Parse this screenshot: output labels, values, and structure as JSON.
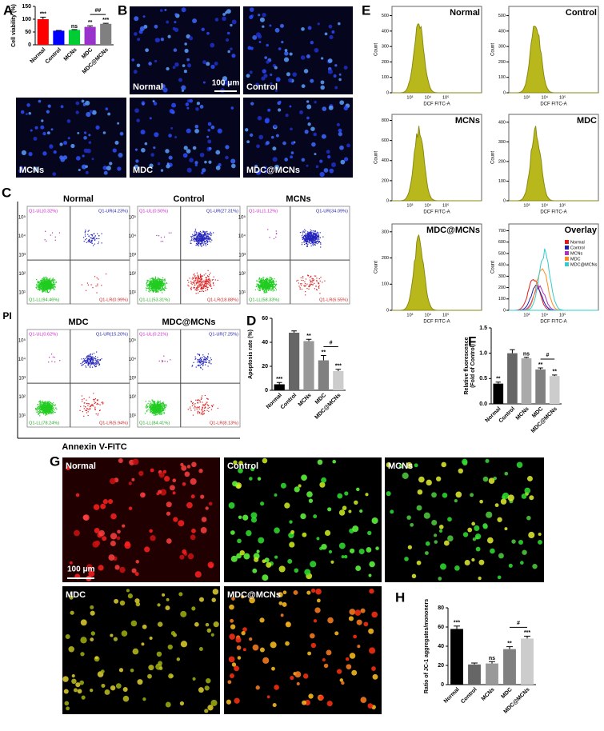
{
  "panel_labels": [
    "A",
    "B",
    "C",
    "D",
    "E",
    "F",
    "G",
    "H"
  ],
  "chart_data": [
    {
      "type": "bar",
      "ylabel": "Cell viability (%)",
      "categories": [
        "Normal",
        "Control",
        "MCNs",
        "MDC",
        "MDC@MCNs"
      ],
      "values": [
        100,
        55,
        58,
        70,
        82
      ],
      "errors": [
        8,
        1,
        1.5,
        4,
        2
      ],
      "colors": [
        "#ff0000",
        "#0000ff",
        "#00cc33",
        "#9933cc",
        "#808080"
      ],
      "ylim": [
        0,
        150
      ],
      "yticks": [
        0,
        50,
        100,
        150
      ],
      "annotations": [
        "***",
        null,
        "ns",
        "**",
        "***"
      ],
      "bracket_label": "##"
    },
    {
      "type": "bar",
      "ylabel": "Apoptosis rate (%)",
      "categories": [
        "Normal",
        "Control",
        "MCNs",
        "MDC",
        "MDC@MCNs"
      ],
      "values": [
        5,
        48,
        41,
        25,
        16
      ],
      "errors": [
        1.5,
        1.5,
        1.5,
        4,
        1.5
      ],
      "colors": [
        "#000000",
        "#666666",
        "#999999",
        "#808080",
        "#cccccc"
      ],
      "ylim": [
        0,
        60
      ],
      "yticks": [
        0,
        20,
        40,
        60
      ],
      "annotations": [
        "***",
        null,
        "**",
        "**",
        "***"
      ],
      "bracket_label": "#"
    },
    {
      "type": "bar",
      "ylabel": [
        "Relative fluorescence",
        "(Fold of Control)"
      ],
      "categories": [
        "Normal",
        "Control",
        "MCNs",
        "MDC",
        "MDC@MCNs"
      ],
      "values": [
        0.4,
        1.0,
        0.9,
        0.68,
        0.55
      ],
      "errors": [
        0.03,
        0.07,
        0.02,
        0.03,
        0.02
      ],
      "colors": [
        "#000000",
        "#666666",
        "#aaaaaa",
        "#808080",
        "#cccccc"
      ],
      "ylim": [
        0,
        1.5
      ],
      "yticks": [
        {
          "value": 0,
          "label": "0.0"
        },
        {
          "value": 0.5,
          "label": "0.5"
        },
        {
          "value": 1,
          "label": "1.0"
        },
        {
          "value": 1.5,
          "label": "1.5"
        }
      ],
      "annotations": [
        "**",
        null,
        "ns",
        "**",
        "**"
      ],
      "bracket_label": "#"
    },
    {
      "type": "bar",
      "ylabel": "Ratio of JC-1 aggregates/mononers",
      "categories": [
        "Normal",
        "Control",
        "MCNs",
        "MDC",
        "MDC@MCNs"
      ],
      "values": [
        58,
        21,
        22,
        37,
        48
      ],
      "errors": [
        3,
        1.5,
        2,
        2.5,
        2.5
      ],
      "colors": [
        "#000000",
        "#666666",
        "#999999",
        "#808080",
        "#cccccc"
      ],
      "ylim": [
        0,
        80
      ],
      "yticks": [
        0,
        20,
        40,
        60,
        80
      ],
      "annotations": [
        "***",
        null,
        "ns",
        "**",
        "***"
      ],
      "bracket_label": "#"
    }
  ],
  "hoechst_images": {
    "labels": [
      "Normal",
      "Control",
      "MCNs",
      "MDC",
      "MDC@MCNs"
    ],
    "scale_bar": "100 μm"
  },
  "flow_cytometry": {
    "ylabel": "PI",
    "xlabel": "Annexin V-FITC",
    "axis_ticks": [
      "10¹",
      "10²",
      "10³",
      "10⁴",
      "10⁵"
    ],
    "plots": [
      {
        "title": "Normal",
        "quadrants": [
          "Q1-UL(0.32%)",
          "Q1-UR(4.23%)",
          "Q1-LL(94.46%)",
          "Q1-LR(0.99%)"
        ]
      },
      {
        "title": "Control",
        "quadrants": [
          "Q1-UL(0.50%)",
          "Q1-UR(27.31%)",
          "Q1-LL(53.31%)",
          "Q1-LR(18.88%)"
        ]
      },
      {
        "title": "MCNs",
        "quadrants": [
          "Q1-UL(1.12%)",
          "Q1-UR(34.09%)",
          "Q1-LL(58.33%)",
          "Q1-LR(6.55%)"
        ]
      },
      {
        "title": "MDC",
        "quadrants": [
          "Q1-UL(0.62%)",
          "Q1-UR(15.20%)",
          "Q1-LL(78.24%)",
          "Q1-LR(5.94%)"
        ]
      },
      {
        "title": "MDC@MCNs",
        "quadrants": [
          "Q1-UL(0.21%)",
          "Q1-UR(7.25%)",
          "Q1-LL(84.41%)",
          "Q1-LR(8.13%)"
        ]
      }
    ]
  },
  "dcf_histograms": {
    "ylabel": "Count",
    "xlabel": "DCF FITC-A",
    "xticks": [
      "10³",
      "10⁴",
      "10⁵"
    ],
    "plots": [
      {
        "title": "Normal",
        "ylim": [
          0,
          560
        ],
        "yticks": [
          0,
          100,
          200,
          300,
          400,
          500
        ]
      },
      {
        "title": "Control",
        "ylim": [
          0,
          560
        ],
        "yticks": [
          0,
          100,
          200,
          300,
          400,
          500
        ]
      },
      {
        "title": "MCNs",
        "ylim": [
          0,
          860
        ],
        "yticks": [
          0,
          200,
          400,
          600,
          800
        ]
      },
      {
        "title": "MDC",
        "ylim": [
          0,
          440
        ],
        "yticks": [
          0,
          100,
          200,
          300,
          400
        ]
      },
      {
        "title": "MDC@MCNs",
        "ylim": [
          0,
          330
        ],
        "yticks": [
          0,
          100,
          200,
          300
        ]
      },
      {
        "title": "Overlay",
        "ylim": [
          0,
          760
        ],
        "yticks": [
          0,
          100,
          200,
          300,
          400,
          500,
          600,
          700
        ]
      }
    ],
    "legend": [
      {
        "name": "Normal",
        "color": "#e31a1c"
      },
      {
        "name": "Control",
        "color": "#1f1fb4"
      },
      {
        "name": "MCNs",
        "color": "#b030c0"
      },
      {
        "name": "MDC",
        "color": "#ff8c1a"
      },
      {
        "name": "MDC@MCNs",
        "color": "#33cccc"
      }
    ]
  },
  "jc1_images": {
    "labels": [
      "Normal",
      "Control",
      "MCNs",
      "MDC",
      "MDC@MCNs"
    ],
    "scale_bar": "100 μm"
  }
}
